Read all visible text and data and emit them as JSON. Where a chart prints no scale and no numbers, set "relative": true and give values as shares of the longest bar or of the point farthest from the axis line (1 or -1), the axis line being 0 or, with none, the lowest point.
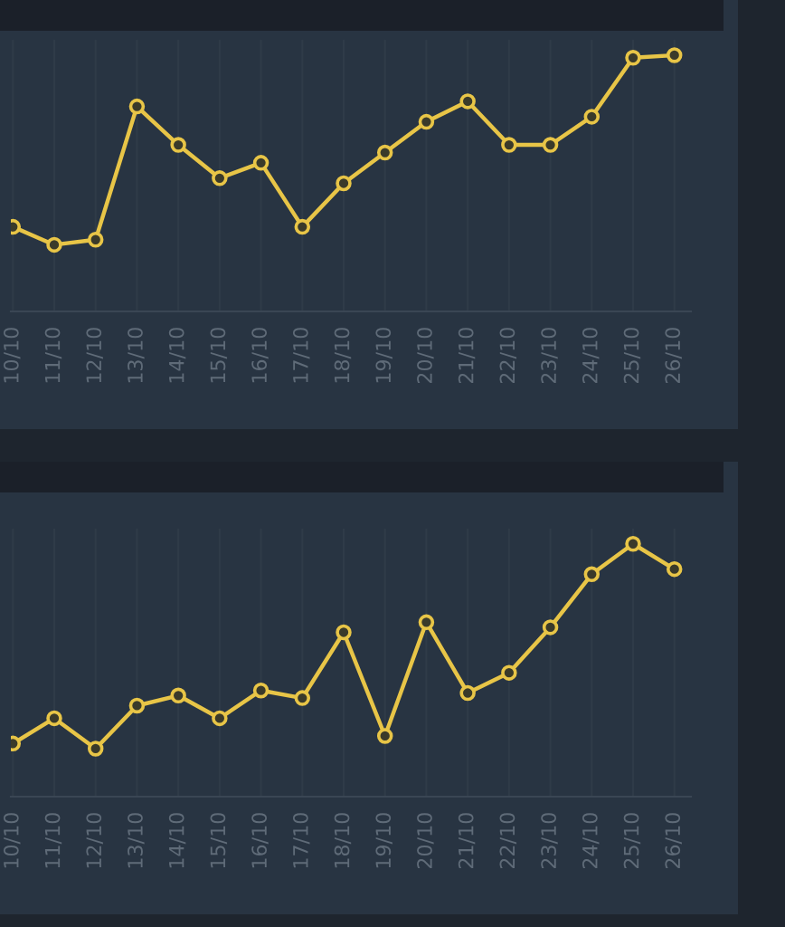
{
  "chart_data": [
    {
      "type": "line",
      "relative": true,
      "marker": "circle",
      "line_style": "solid",
      "grid": "x",
      "categories": [
        "10/10",
        "11/10",
        "12/10",
        "13/10",
        "14/10",
        "15/10",
        "16/10",
        "17/10",
        "18/10",
        "19/10",
        "20/10",
        "21/10",
        "22/10",
        "23/10",
        "24/10",
        "25/10",
        "26/10"
      ],
      "series": [
        {
          "color": "#e8c547",
          "values": [
            0.33,
            0.26,
            0.28,
            0.8,
            0.65,
            0.52,
            0.58,
            0.33,
            0.5,
            0.62,
            0.74,
            0.82,
            0.65,
            0.65,
            0.76,
            0.99,
            1
          ]
        }
      ]
    },
    {
      "type": "line",
      "relative": true,
      "marker": "circle",
      "line_style": "solid",
      "grid": "x",
      "categories": [
        "10/10",
        "11/10",
        "12/10",
        "13/10",
        "14/10",
        "15/10",
        "16/10",
        "17/10",
        "18/10",
        "19/10",
        "20/10",
        "21/10",
        "22/10",
        "23/10",
        "24/10",
        "25/10",
        "26/10"
      ],
      "series": [
        {
          "color": "#e8c547",
          "values": [
            0.21,
            0.31,
            0.19,
            0.36,
            0.4,
            0.31,
            0.42,
            0.39,
            0.65,
            0.24,
            0.69,
            0.41,
            0.49,
            0.67,
            0.88,
            1,
            0.9
          ]
        }
      ]
    }
  ]
}
